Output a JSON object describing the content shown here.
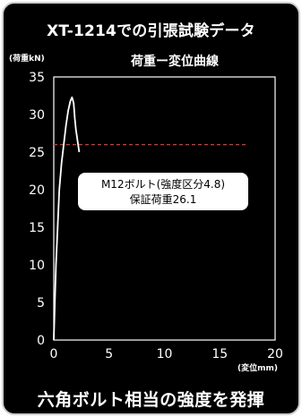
{
  "title": "XT-1214での引張試験データ",
  "footer": "六角ボルト相当の強度を発揮",
  "chart_data": {
    "type": "line",
    "title": "荷重ー変位曲線",
    "ylabel": "(荷重kN)",
    "xlabel": "(変位mm)",
    "xlim": [
      0,
      20
    ],
    "ylim": [
      0,
      35
    ],
    "xticks": [
      0,
      5,
      10,
      15,
      20
    ],
    "yticks": [
      0,
      5,
      10,
      15,
      20,
      25,
      30,
      35
    ],
    "grid": false,
    "series": [
      {
        "color": "#ffffff",
        "x": [
          0,
          0.1,
          0.2,
          0.35,
          0.5,
          0.7,
          0.9,
          1.1,
          1.3,
          1.5,
          1.65,
          1.8,
          1.9,
          2.0,
          2.1,
          2.2,
          2.3
        ],
        "y": [
          0,
          5,
          10,
          15,
          20,
          23.5,
          26,
          28.5,
          30.5,
          31.8,
          32.3,
          31.5,
          29.5,
          28,
          27,
          26,
          25
        ]
      }
    ],
    "reference_line": {
      "y": 26,
      "x_end": 17.5,
      "color": "#e0342e"
    },
    "annotation": {
      "line1": "M12ボルト(強度区分4.8)",
      "line2": "保証荷重26.1"
    }
  }
}
